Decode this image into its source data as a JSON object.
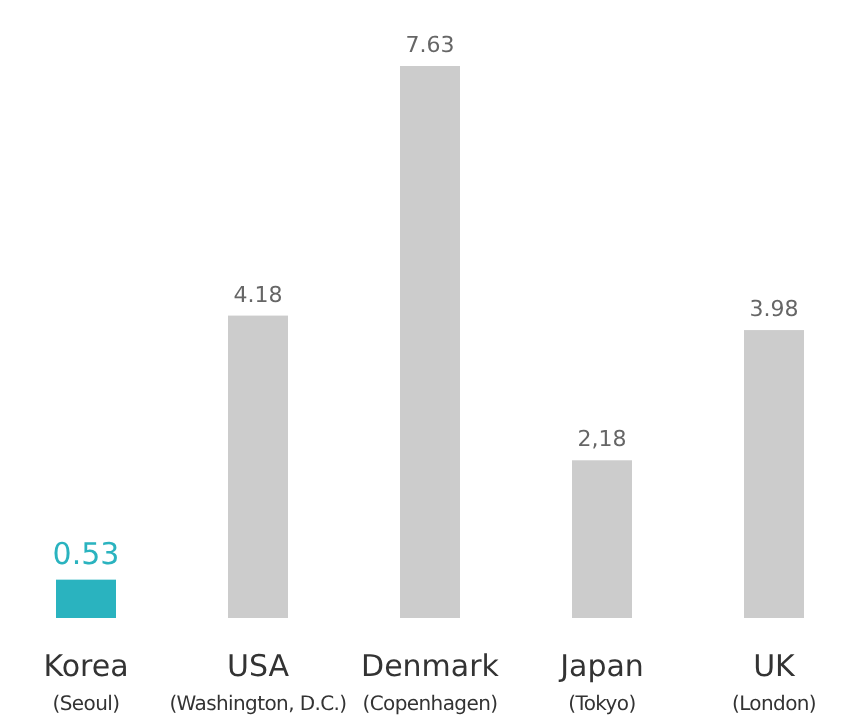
{
  "chart_data": {
    "type": "bar",
    "categories": [
      "Korea\n(Seoul)",
      "USA\n(Washington, D.C.)",
      "Denmark\n(Copenhagen)",
      "Japan\n(Tokyo)",
      "UK\n(London)"
    ],
    "values": [
      0.53,
      4.18,
      7.63,
      2.18,
      3.98
    ],
    "colors": [
      "#2ab3bf",
      "#cccccc",
      "#cccccc",
      "#cccccc",
      "#cccccc"
    ],
    "value_labels": [
      "0.53",
      "4.18",
      "7.63",
      "2,18",
      "3.98"
    ]
  }
}
